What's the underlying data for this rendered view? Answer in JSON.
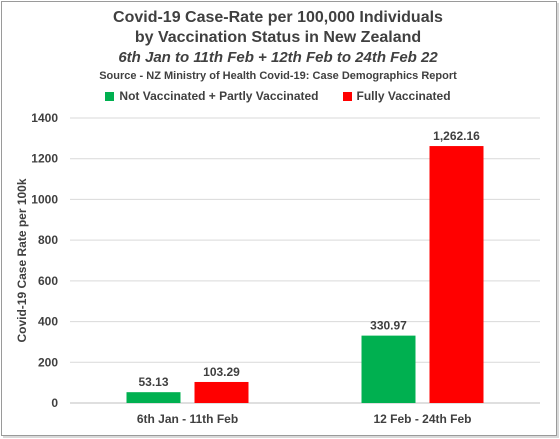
{
  "chart_data": {
    "type": "bar",
    "title": "Covid-19 Case-Rate per 100,000 Individuals",
    "title_line2": "by Vaccination Status in New Zealand",
    "subtitle": "6th Jan to 11th Feb + 12th Feb to 24th Feb 22",
    "source": "Source - NZ Ministry of Health Covid-19: Case Demographics Report",
    "ylabel": "Covid-19 Case Rate per 100k",
    "xlabel": "",
    "ylim": [
      0,
      1400
    ],
    "yticks": [
      "0",
      "200",
      "400",
      "600",
      "800",
      "1000",
      "1200",
      "1400"
    ],
    "ytick_values": [
      0,
      200,
      400,
      600,
      800,
      1000,
      1200,
      1400
    ],
    "grid": true,
    "legend_position": "top",
    "categories": [
      "6th Jan - 11th Feb",
      "12 Feb - 24th Feb"
    ],
    "series": [
      {
        "name": "Not Vaccinated + Partly Vaccinated",
        "color": "#00b050",
        "values": [
          53.13,
          330.97
        ],
        "labels": [
          "53.13",
          "330.97"
        ]
      },
      {
        "name": "Fully Vaccinated",
        "color": "#ff0000",
        "values": [
          103.29,
          1262.16
        ],
        "labels": [
          "103.29",
          "1,262.16"
        ]
      }
    ]
  },
  "colors": {
    "text": "#404040",
    "grid": "#d9d9d9",
    "axis": "#bfbfbf"
  }
}
